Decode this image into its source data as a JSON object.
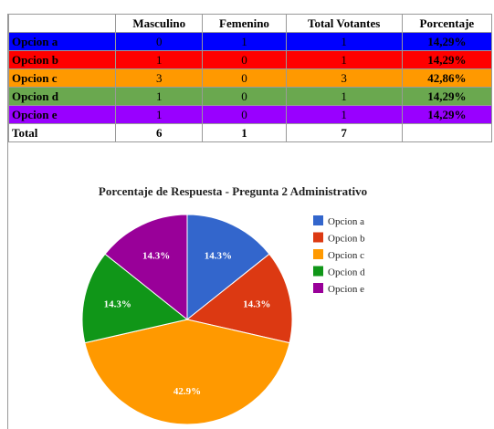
{
  "table": {
    "columns": [
      "Masculino",
      "Femenino",
      "Total Votantes",
      "Porcentaje"
    ],
    "rows": [
      {
        "label": "Opcion a",
        "color": "#0000ff",
        "cells": [
          "0",
          "1",
          "1",
          "14,29%"
        ]
      },
      {
        "label": "Opcion b",
        "color": "#ff0000",
        "cells": [
          "1",
          "0",
          "1",
          "14,29%"
        ]
      },
      {
        "label": "Opcion c",
        "color": "#ff9900",
        "cells": [
          "3",
          "0",
          "3",
          "42,86%"
        ]
      },
      {
        "label": "Opcion d",
        "color": "#6aa84f",
        "cells": [
          "1",
          "0",
          "1",
          "14,29%"
        ]
      },
      {
        "label": "Opcion e",
        "color": "#9900ff",
        "cells": [
          "1",
          "0",
          "1",
          "14,29%"
        ]
      }
    ],
    "total": {
      "label": "Total",
      "cells": [
        "6",
        "1",
        "7"
      ]
    }
  },
  "chart_data": {
    "type": "pie",
    "title": "Porcentaje de Respuesta - Pregunta 2 Administrativo",
    "categories": [
      "Opcion a",
      "Opcion b",
      "Opcion c",
      "Opcion d",
      "Opcion e"
    ],
    "values": [
      14.3,
      14.3,
      42.9,
      14.3,
      14.3
    ],
    "value_labels": [
      "14.3%",
      "14.3%",
      "42.9%",
      "14.3%",
      "14.3%"
    ],
    "colors": [
      "#3366cc",
      "#dc3912",
      "#ff9900",
      "#109618",
      "#990099"
    ],
    "legend": "right"
  }
}
